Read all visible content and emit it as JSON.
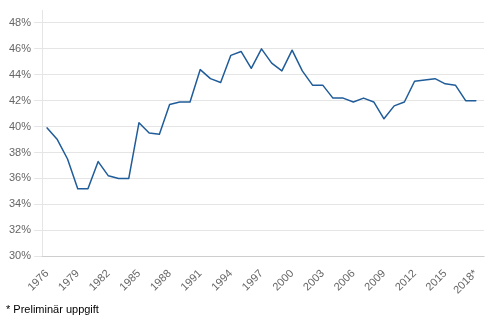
{
  "chart_data": {
    "type": "line",
    "x": [
      1976,
      1977,
      1978,
      1979,
      1980,
      1981,
      1982,
      1983,
      1984,
      1985,
      1986,
      1987,
      1988,
      1989,
      1990,
      1991,
      1992,
      1993,
      1994,
      1995,
      1996,
      1997,
      1998,
      1999,
      2000,
      2001,
      2002,
      2003,
      2004,
      2005,
      2006,
      2007,
      2008,
      2009,
      2010,
      2011,
      2012,
      2013,
      2014,
      2015,
      2016,
      2017,
      2018
    ],
    "values": [
      39.9,
      39.0,
      37.5,
      35.2,
      35.2,
      37.3,
      36.2,
      36.0,
      36.0,
      40.3,
      39.5,
      39.4,
      41.7,
      41.9,
      41.9,
      44.4,
      43.7,
      43.4,
      45.5,
      45.8,
      44.5,
      46.0,
      44.9,
      44.3,
      45.9,
      44.3,
      43.2,
      43.2,
      42.2,
      42.2,
      41.9,
      42.2,
      41.9,
      40.6,
      41.6,
      41.9,
      43.5,
      43.6,
      43.7,
      43.3,
      43.2,
      42.0,
      42.0
    ],
    "color": "#1F5C99",
    "xlim": [
      1975.5,
      2018.8
    ],
    "xticks": [
      1976,
      1979,
      1982,
      1985,
      1988,
      1991,
      1994,
      1997,
      2000,
      2003,
      2006,
      2009,
      2012,
      2015,
      {
        "value": 2018,
        "label": "2018*"
      }
    ],
    "ylim": [
      30,
      49
    ],
    "yticks": [
      {
        "value": 30,
        "label": "30%"
      },
      {
        "value": 32,
        "label": "32%"
      },
      {
        "value": 34,
        "label": "34%"
      },
      {
        "value": 36,
        "label": "36%"
      },
      {
        "value": 38,
        "label": "38%"
      },
      {
        "value": 40,
        "label": "40%"
      },
      {
        "value": 42,
        "label": "42%"
      },
      {
        "value": 44,
        "label": "44%"
      },
      {
        "value": 46,
        "label": "46%"
      },
      {
        "value": 48,
        "label": "48%"
      }
    ],
    "grid": "y",
    "annotation": "* Preliminär uppgift"
  }
}
